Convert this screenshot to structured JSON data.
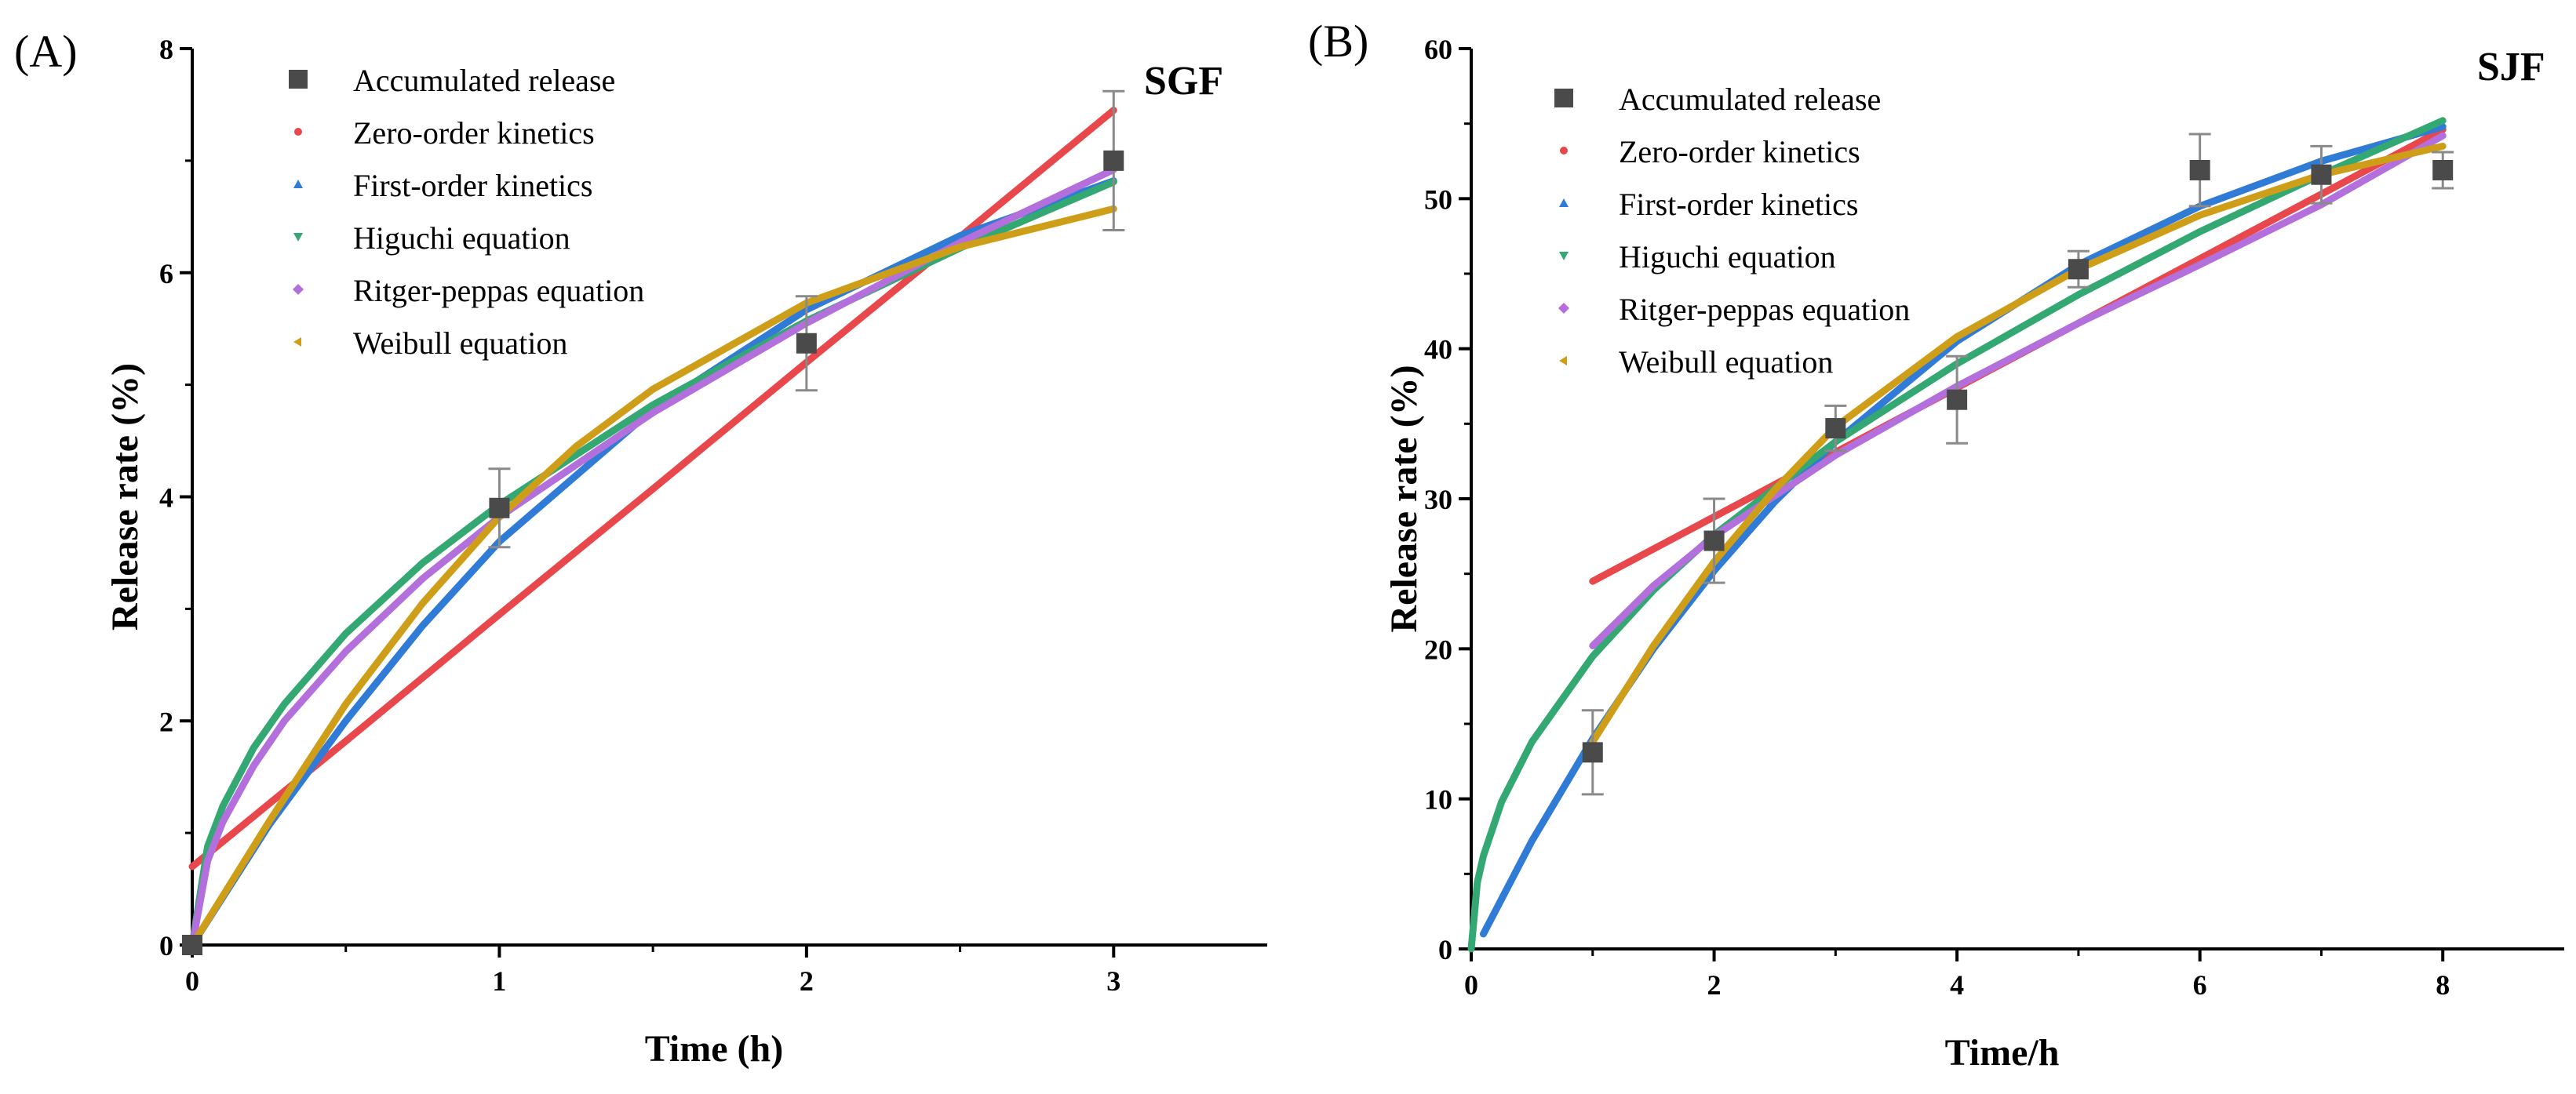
{
  "colors": {
    "accumulated": "#4a4a4a",
    "zero_order": "#e8484c",
    "first_order": "#2f7bd6",
    "higuchi": "#34a873",
    "ritger_peppas": "#b36fdb",
    "weibull": "#cf9e18",
    "errorbar": "#8a8a8a"
  },
  "chart_data": [
    {
      "panel_label": "(A)",
      "type": "scatter",
      "medium_label": "SGF",
      "xlabel": "Time (h)",
      "ylabel": "Release rate (%)",
      "xlim": [
        0,
        3.5
      ],
      "ylim": [
        0,
        8
      ],
      "xticks": [
        "0",
        "1",
        "2",
        "3"
      ],
      "yticks": [
        "0",
        "2",
        "4",
        "6",
        "8"
      ],
      "legend_position": "top-center",
      "legend": [
        "Accumulated release",
        "Zero-order kinetics",
        "First-order kinetics",
        "Higuchi equation",
        "Ritger-peppas equation",
        "Weibull equation"
      ],
      "accumulated": {
        "x": [
          0,
          1,
          2,
          3
        ],
        "y": [
          0,
          3.9,
          5.37,
          7.0
        ],
        "err": [
          0,
          0.35,
          0.42,
          0.62
        ]
      },
      "series": [
        {
          "name": "Zero-order kinetics",
          "key": "zero_order",
          "x": [
            0,
            0.5,
            1,
            1.5,
            2,
            2.5,
            3
          ],
          "y": [
            0.7,
            1.82,
            2.95,
            4.07,
            5.2,
            6.32,
            7.45
          ]
        },
        {
          "name": "First-order kinetics",
          "key": "first_order",
          "x": [
            0,
            0.25,
            0.5,
            0.75,
            1,
            1.5,
            2,
            2.5,
            3
          ],
          "y": [
            0,
            1.07,
            2.0,
            2.85,
            3.6,
            4.78,
            5.67,
            6.33,
            6.82
          ]
        },
        {
          "name": "Higuchi equation",
          "key": "higuchi",
          "x": [
            0,
            0.05,
            0.1,
            0.2,
            0.3,
            0.5,
            0.75,
            1,
            1.5,
            2,
            2.5,
            3
          ],
          "y": [
            0,
            0.88,
            1.24,
            1.76,
            2.15,
            2.78,
            3.41,
            3.93,
            4.82,
            5.57,
            6.22,
            6.81
          ]
        },
        {
          "name": "Ritger-peppas equation",
          "key": "ritger_peppas",
          "x": [
            0,
            0.05,
            0.1,
            0.2,
            0.3,
            0.5,
            0.75,
            1,
            1.5,
            2,
            2.5,
            3
          ],
          "y": [
            0,
            0.75,
            1.1,
            1.6,
            2.0,
            2.62,
            3.27,
            3.82,
            4.75,
            5.55,
            6.27,
            6.92
          ]
        },
        {
          "name": "Weibull equation",
          "key": "weibull",
          "x": [
            0,
            0.25,
            0.5,
            0.75,
            1,
            1.25,
            1.5,
            2,
            2.5,
            3
          ],
          "y": [
            0,
            1.1,
            2.15,
            3.05,
            3.82,
            4.45,
            4.96,
            5.73,
            6.23,
            6.57
          ]
        }
      ]
    },
    {
      "panel_label": "(B)",
      "type": "scatter",
      "medium_label": "SJF",
      "xlabel": "Time/h",
      "ylabel": "Release rate (%)",
      "xlim": [
        0,
        9
      ],
      "ylim": [
        0,
        60
      ],
      "xticks": [
        "0",
        "2",
        "4",
        "6",
        "8"
      ],
      "yticks": [
        "0",
        "10",
        "20",
        "30",
        "40",
        "50",
        "60"
      ],
      "legend_position": "top-center",
      "legend": [
        "Accumulated release",
        "Zero-order kinetics",
        "First-order kinetics",
        "Higuchi equation",
        "Ritger-peppas equation",
        "Weibull equation"
      ],
      "accumulated": {
        "x": [
          1,
          2,
          3,
          4,
          5,
          6,
          7,
          8
        ],
        "y": [
          13.1,
          27.2,
          34.7,
          36.6,
          45.3,
          51.9,
          51.6,
          51.9
        ],
        "err": [
          2.8,
          2.8,
          1.5,
          2.9,
          1.2,
          2.4,
          1.9,
          1.2
        ]
      },
      "series": [
        {
          "name": "Zero-order kinetics",
          "key": "zero_order",
          "x": [
            1,
            2,
            3,
            4,
            5,
            6,
            7,
            8
          ],
          "y": [
            24.5,
            28.8,
            33.1,
            37.4,
            41.7,
            46.0,
            50.3,
            54.6
          ]
        },
        {
          "name": "First-order kinetics",
          "key": "first_order",
          "x": [
            0.1,
            0.5,
            1,
            1.5,
            2,
            2.5,
            3,
            4,
            5,
            6,
            7,
            8
          ],
          "y": [
            1.0,
            7.2,
            14.0,
            20.0,
            25.2,
            29.8,
            33.8,
            40.5,
            45.6,
            49.5,
            52.5,
            54.8
          ]
        },
        {
          "name": "Higuchi equation",
          "key": "higuchi",
          "x": [
            0,
            0.05,
            0.1,
            0.25,
            0.5,
            1,
            1.5,
            2,
            3,
            4,
            5,
            6,
            7,
            8
          ],
          "y": [
            0,
            4.4,
            6.2,
            9.8,
            13.8,
            19.5,
            23.9,
            27.6,
            33.8,
            39.0,
            43.6,
            47.8,
            51.6,
            55.2
          ]
        },
        {
          "name": "Ritger-peppas equation",
          "key": "ritger_peppas",
          "x": [
            1,
            1.5,
            2,
            3,
            4,
            5,
            6,
            7,
            8
          ],
          "y": [
            20.2,
            24.2,
            27.5,
            32.9,
            37.5,
            41.7,
            45.6,
            49.6,
            54.2
          ]
        },
        {
          "name": "Weibull equation",
          "key": "weibull",
          "x": [
            1,
            1.5,
            2,
            2.5,
            3,
            4,
            5,
            6,
            7,
            8
          ],
          "y": [
            13.8,
            20.2,
            25.8,
            30.6,
            34.8,
            40.8,
            45.3,
            48.9,
            51.6,
            53.5
          ]
        }
      ]
    }
  ]
}
